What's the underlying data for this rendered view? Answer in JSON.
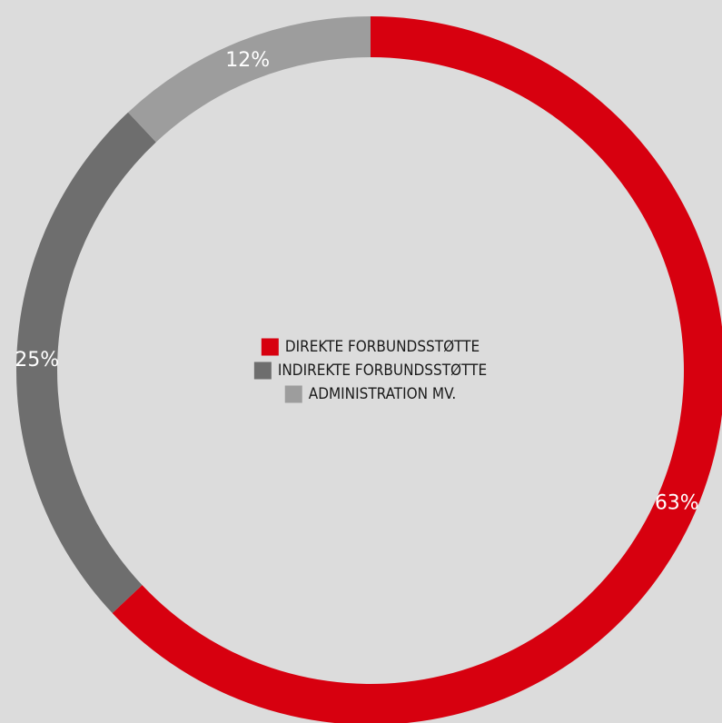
{
  "chart_data": {
    "type": "pie",
    "variant": "donut",
    "title": "",
    "series": [
      {
        "name": "DIREKTE FORBUNDSSTØTTE",
        "value": 63,
        "label": "63%",
        "color": "#d7000f"
      },
      {
        "name": "INDIREKTE FORBUNDSSTØTTE",
        "value": 25,
        "label": "25%",
        "color": "#6e6e6e"
      },
      {
        "name": "ADMINISTRATION MV.",
        "value": 12,
        "label": "12%",
        "color": "#9d9d9d"
      }
    ],
    "legend_position": "center"
  }
}
